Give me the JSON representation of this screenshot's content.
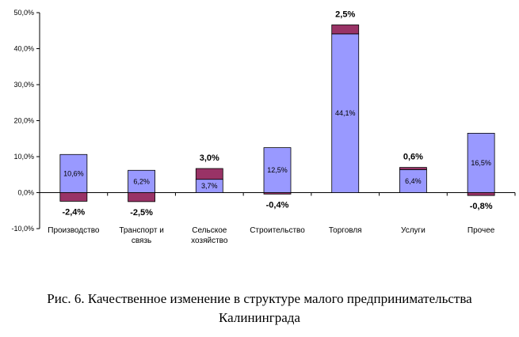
{
  "chart_data": {
    "type": "bar",
    "stacked": true,
    "categories": [
      [
        "Производство"
      ],
      [
        "Транспорт и",
        "связь"
      ],
      [
        "Сельское",
        "хозяйство"
      ],
      [
        "Строительство"
      ],
      [
        "Торговля"
      ],
      [
        "Услуги"
      ],
      [
        "Прочее"
      ]
    ],
    "series": [
      {
        "values": [
          10.6,
          6.2,
          3.7,
          12.5,
          44.1,
          6.4,
          16.5
        ],
        "labels": [
          "10,6%",
          "6,2%",
          "3,7%",
          "12,5%",
          "44,1%",
          "6,4%",
          "16,5%"
        ],
        "color": "#9999ff"
      },
      {
        "values": [
          -2.4,
          -2.5,
          3.0,
          -0.4,
          2.5,
          0.6,
          -0.8
        ],
        "labels": [
          "-2,4%",
          "-2,5%",
          "3,0%",
          "-0,4%",
          "2,5%",
          "0,6%",
          "-0,8%"
        ],
        "color": "#993366"
      }
    ],
    "ylim": [
      -10,
      50
    ],
    "yticks": [
      {
        "v": 50,
        "label": "50,0%"
      },
      {
        "v": 40,
        "label": "40,0%"
      },
      {
        "v": 30,
        "label": "30,0%"
      },
      {
        "v": 20,
        "label": "20,0%"
      },
      {
        "v": 10,
        "label": "10,0%"
      },
      {
        "v": 0,
        "label": "0,0%"
      },
      {
        "v": -10,
        "label": "-10,0%"
      }
    ],
    "grid": false,
    "legend": "none"
  },
  "caption": {
    "line1": "Рис. 6. Качественное изменение в структуре малого предпринимательства",
    "line2": "Калининграда"
  }
}
